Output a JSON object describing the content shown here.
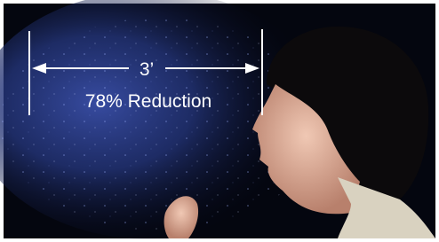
{
  "annotation": {
    "distance": "3’",
    "reduction": "78% Reduction"
  }
}
